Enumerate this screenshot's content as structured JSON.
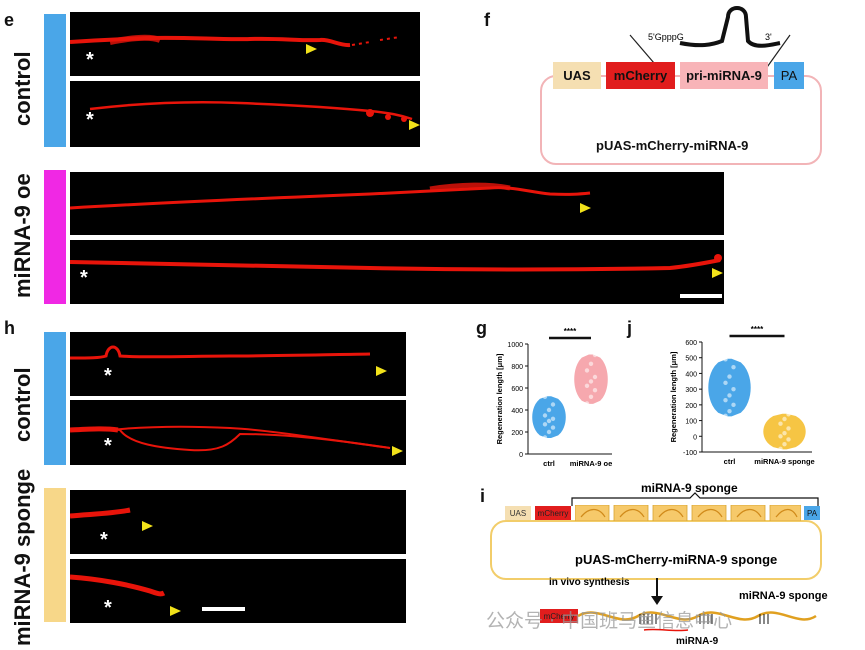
{
  "panel_letters": {
    "e": "e",
    "f": "f",
    "h": "h",
    "g": "g",
    "j": "j",
    "i": "i"
  },
  "row_labels": {
    "e_control": "control",
    "e_oe": "miRNA-9 oe",
    "h_control": "control",
    "h_sponge": "miRNA-9 sponge"
  },
  "colors": {
    "control": "#4aa6e8",
    "oe": "#f028e4",
    "sponge": "#f7d789",
    "axon": "#e8140a",
    "arrowhead": "#f2e21a"
  },
  "markers": {
    "star": "*"
  },
  "construct_f": {
    "utr5": "5'GpppG",
    "utr3": "3'",
    "elements": [
      {
        "label": "UAS",
        "color": "#f5dfb2"
      },
      {
        "label": "mCherry",
        "color": "#e11d1d"
      },
      {
        "label": "pri-miRNA-9",
        "color": "#f8b4b8"
      },
      {
        "label": "PA",
        "color": "#4aa6e8"
      }
    ],
    "plasmid_name": "pUAS-mCherry-miRNA-9"
  },
  "construct_i": {
    "elements": [
      "UAS",
      "mCherry",
      "PA"
    ],
    "sponge_header": "miRNA-9  sponge",
    "plasmid_name": "pUAS-mCherry-miRNA-9 sponge",
    "synthesis": "in vivo synthesis",
    "transcript_mcherry": "mCherry",
    "transcript_label": "miRNA-9 sponge",
    "mirna_label": "miRNA-9"
  },
  "chart_data": [
    {
      "type": "violin",
      "panel": "g",
      "categories": [
        "ctrl",
        "miRNA-9 oe"
      ],
      "ylabel": "Regeneration length [μm]",
      "ylim": [
        0,
        1000
      ],
      "yticks": [
        0,
        200,
        400,
        600,
        800,
        1000
      ],
      "significance": "****",
      "series": [
        {
          "category": "ctrl",
          "color": "#4aa6e8",
          "values": [
            150,
            200,
            240,
            270,
            300,
            320,
            350,
            400,
            450,
            520
          ]
        },
        {
          "category": "miRNA-9 oe",
          "color": "#f6a8ae",
          "values": [
            460,
            520,
            580,
            620,
            660,
            700,
            760,
            820,
            900
          ]
        }
      ]
    },
    {
      "type": "violin",
      "panel": "j",
      "categories": [
        "ctrl",
        "miRNA-9 sponge"
      ],
      "ylabel": "Regeneration length [μm]",
      "ylim": [
        -100,
        600
      ],
      "yticks": [
        -100,
        0,
        100,
        200,
        300,
        400,
        500,
        600
      ],
      "significance": "****",
      "series": [
        {
          "category": "ctrl",
          "color": "#4aa6e8",
          "values": [
            130,
            160,
            200,
            230,
            260,
            300,
            340,
            380,
            440,
            490
          ]
        },
        {
          "category": "miRNA-9 sponge",
          "color": "#f6c544",
          "values": [
            -80,
            -50,
            -20,
            0,
            20,
            50,
            80,
            110,
            140
          ]
        }
      ]
    }
  ],
  "watermark": "公众号 · 中国班马鱼信息中心"
}
